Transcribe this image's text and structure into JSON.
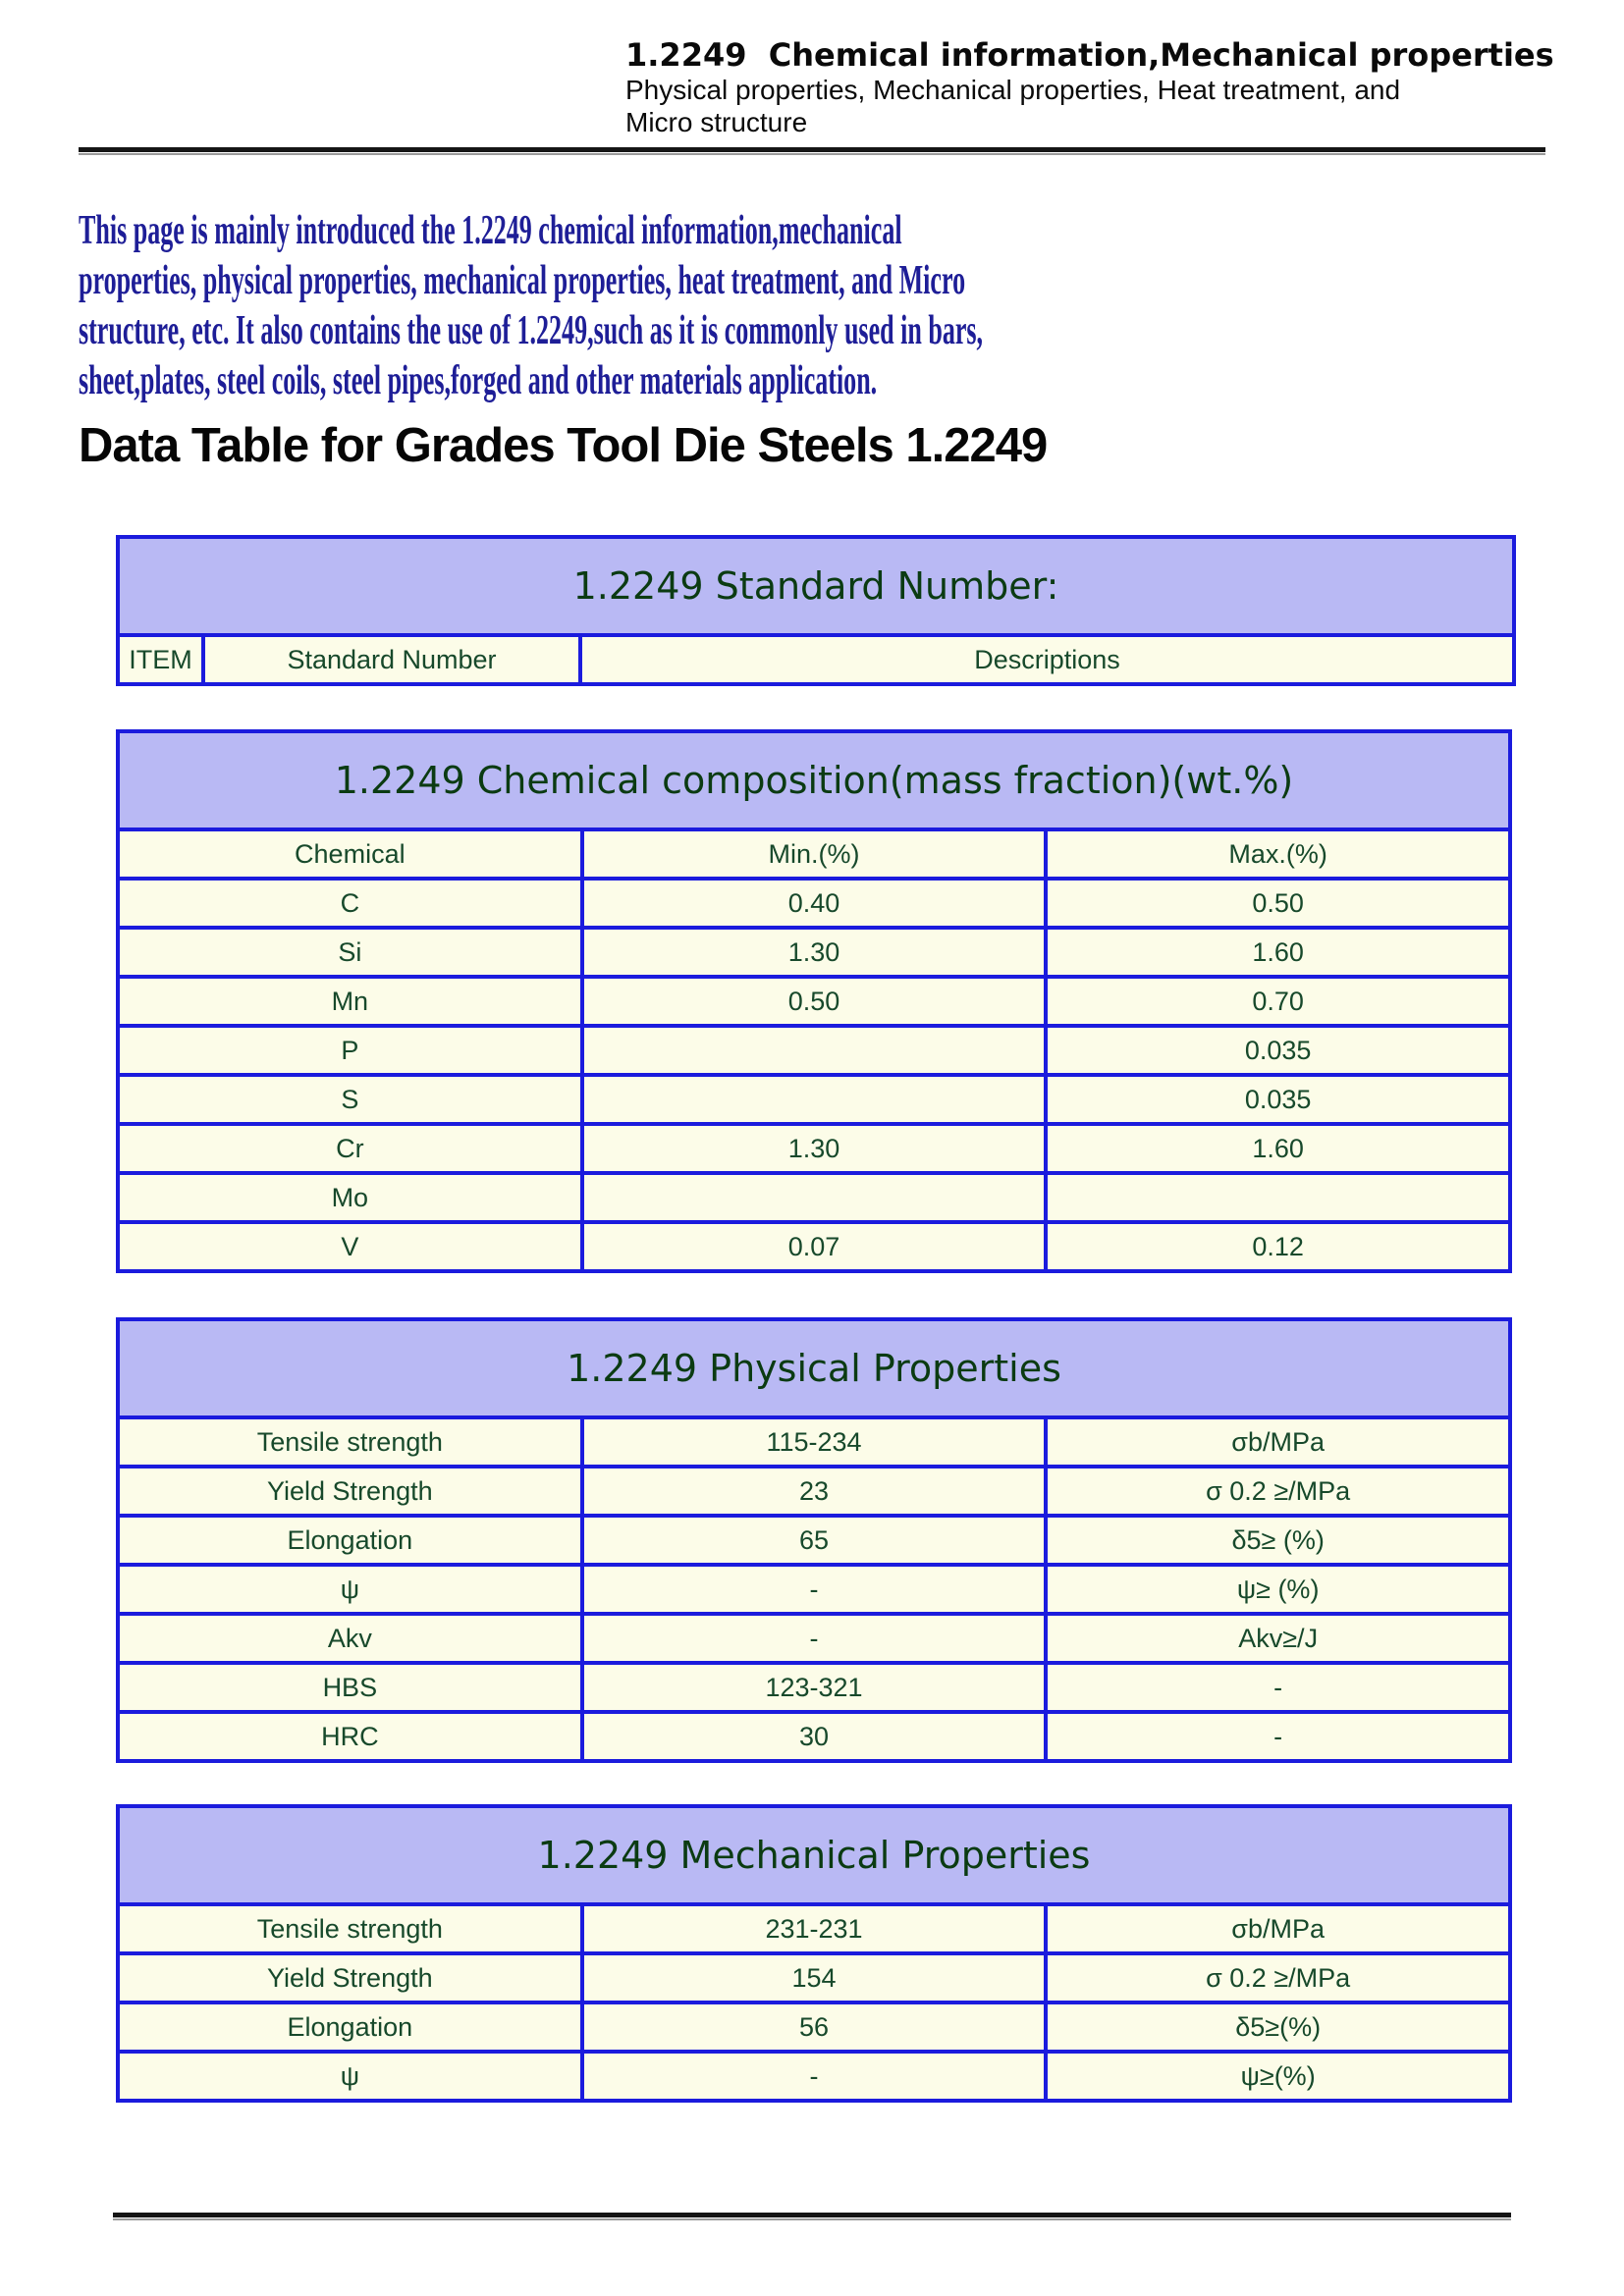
{
  "masthead": {
    "line1": "1.2249  Chemical information,Mechanical properties",
    "line2": "Physical properties, Mechanical properties, Heat treatment, and",
    "line3": "Micro structure"
  },
  "intro_lines": [
    "This page is mainly introduced the 1.2249 chemical information,mechanical",
    "properties, physical properties, mechanical properties, heat treatment, and Micro",
    "structure, etc. It also contains the use of 1.2249,such as it is commonly used in bars,",
    "sheet,plates, steel coils, steel pipes,forged and other materials application."
  ],
  "page_heading": "Data Table for Grades Tool Die Steels 1.2249",
  "colors": {
    "table_border": "#1b1bdd",
    "band_background": "#b9b9f4",
    "cell_background": "#fcfce8",
    "band_text": "#0b3b12",
    "cell_text": "#17492b",
    "intro_text": "#1e1e97"
  },
  "tables": [
    {
      "title": "1.2249 Standard Number:",
      "rows": [
        [
          "ITEM",
          "Standard Number",
          "Descriptions"
        ]
      ]
    },
    {
      "title": "1.2249 Chemical composition(mass fraction)(wt.%)",
      "rows": [
        [
          "Chemical",
          "Min.(%)",
          "Max.(%)"
        ],
        [
          "C",
          "0.40",
          "0.50"
        ],
        [
          "Si",
          "1.30",
          "1.60"
        ],
        [
          "Mn",
          "0.50",
          "0.70"
        ],
        [
          "P",
          "",
          "0.035"
        ],
        [
          "S",
          "",
          "0.035"
        ],
        [
          "Cr",
          "1.30",
          "1.60"
        ],
        [
          "Mo",
          "",
          ""
        ],
        [
          "V",
          "0.07",
          "0.12"
        ]
      ]
    },
    {
      "title": "1.2249 Physical Properties",
      "rows": [
        [
          "Tensile strength",
          "115-234",
          "σb/MPa"
        ],
        [
          "Yield Strength",
          "23",
          "σ 0.2 ≥/MPa"
        ],
        [
          "Elongation",
          "65",
          "δ5≥ (%)"
        ],
        [
          "ψ",
          "-",
          "ψ≥ (%)"
        ],
        [
          "Akv",
          "-",
          "Akv≥/J"
        ],
        [
          "HBS",
          "123-321",
          "-"
        ],
        [
          "HRC",
          "30",
          "-"
        ]
      ]
    },
    {
      "title": "1.2249 Mechanical Properties",
      "rows": [
        [
          "Tensile strength",
          "231-231",
          "σb/MPa"
        ],
        [
          "Yield Strength",
          "154",
          "σ 0.2 ≥/MPa"
        ],
        [
          "Elongation",
          "56",
          "δ5≥(%)"
        ],
        [
          "ψ",
          "-",
          "ψ≥(%)"
        ]
      ]
    }
  ]
}
